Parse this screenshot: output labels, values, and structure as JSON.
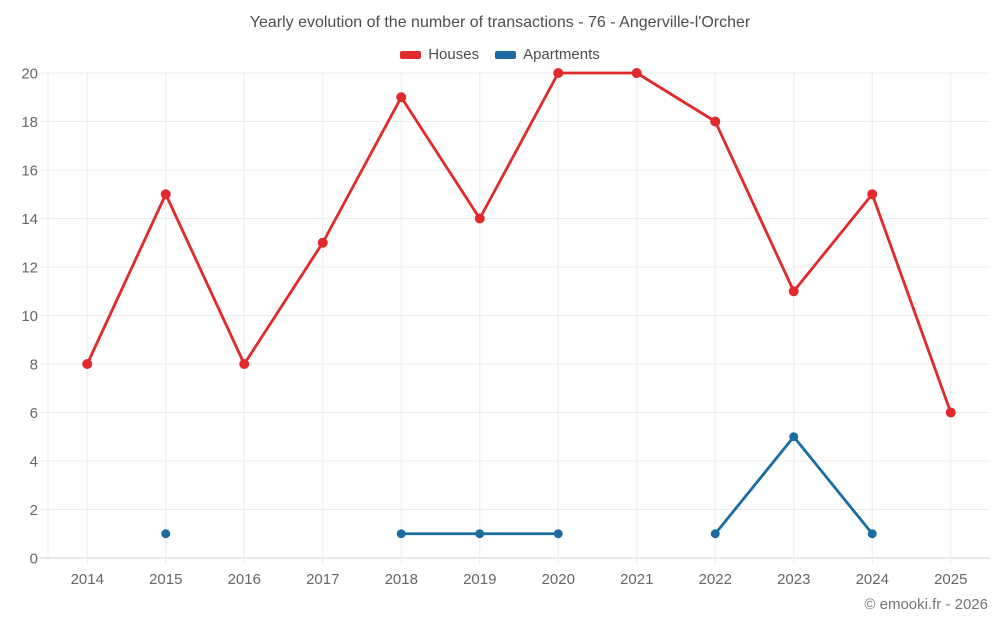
{
  "chart_data": {
    "type": "line",
    "title": "Yearly evolution of the number of transactions - 76 - Angerville-l'Orcher",
    "categories": [
      "2014",
      "2015",
      "2016",
      "2017",
      "2018",
      "2019",
      "2020",
      "2021",
      "2022",
      "2023",
      "2024",
      "2025"
    ],
    "series": [
      {
        "name": "Houses",
        "color": "#e02a2b",
        "marker_radius": 5,
        "values": [
          8,
          15,
          8,
          13,
          19,
          14,
          20,
          20,
          18,
          11,
          15,
          6
        ]
      },
      {
        "name": "Apartments",
        "color": "#1b6ca3",
        "marker_radius": 4.5,
        "values": [
          null,
          1,
          null,
          null,
          1,
          1,
          1,
          null,
          1,
          5,
          1,
          null
        ]
      }
    ],
    "xlabel": "",
    "ylabel": "",
    "ylim": [
      0,
      20
    ],
    "ytick_step": 2,
    "grid": true,
    "legend_position": "top",
    "colors": {
      "grid_line": "#ececec",
      "axis_line": "#cfcfcf",
      "tick_label": "#666666",
      "title_text": "#4d4d4d"
    }
  },
  "footer": {
    "copyright": "© emooki.fr - 2026"
  }
}
